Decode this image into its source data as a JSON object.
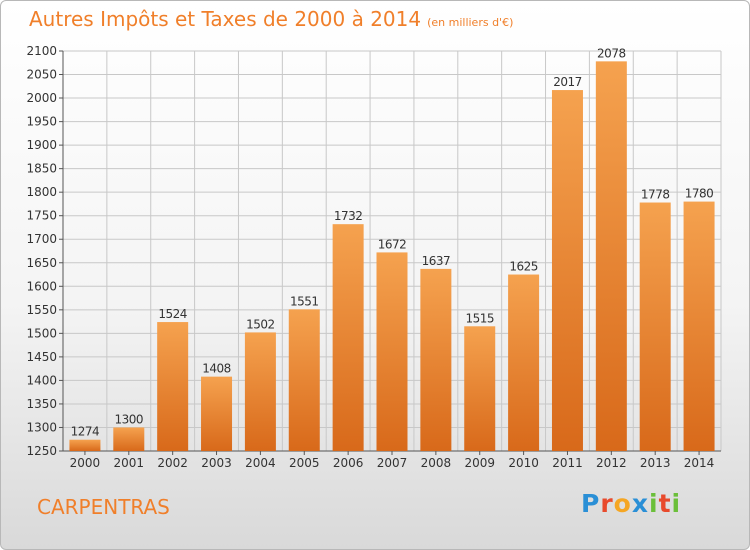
{
  "header": {
    "title": "Autres Impôts et Taxes de 2000 à 2014",
    "unit": "(en milliers d'€)"
  },
  "footer": {
    "commune": "CARPENTRAS"
  },
  "logo": {
    "letters": [
      "P",
      "r",
      "o",
      "x",
      "i",
      "t",
      "i"
    ],
    "colors": [
      "#2a8fd6",
      "#e84a2c",
      "#f5a623",
      "#2a8fd6",
      "#6bbf3a",
      "#e84a2c",
      "#6bbf3a"
    ]
  },
  "colors": {
    "accent": "#f07f2a",
    "bar_light": "#f5a24f",
    "bar_dark": "#d8691a",
    "grid": "#c8c8c8"
  },
  "chart_data": {
    "type": "bar",
    "title": "Autres Impôts et Taxes de 2000 à 2014",
    "ylabel": "",
    "xlabel": "",
    "categories": [
      "2000",
      "2001",
      "2002",
      "2003",
      "2004",
      "2005",
      "2006",
      "2007",
      "2008",
      "2009",
      "2010",
      "2011",
      "2012",
      "2013",
      "2014"
    ],
    "values": [
      1274,
      1300,
      1524,
      1408,
      1502,
      1551,
      1732,
      1672,
      1637,
      1515,
      1625,
      2017,
      2078,
      1778,
      1780
    ],
    "ylim": [
      1250,
      2100
    ],
    "yticks": [
      1250,
      1300,
      1350,
      1400,
      1450,
      1500,
      1550,
      1600,
      1650,
      1700,
      1750,
      1800,
      1850,
      1900,
      1950,
      2000,
      2050,
      2100
    ],
    "grid": true
  }
}
